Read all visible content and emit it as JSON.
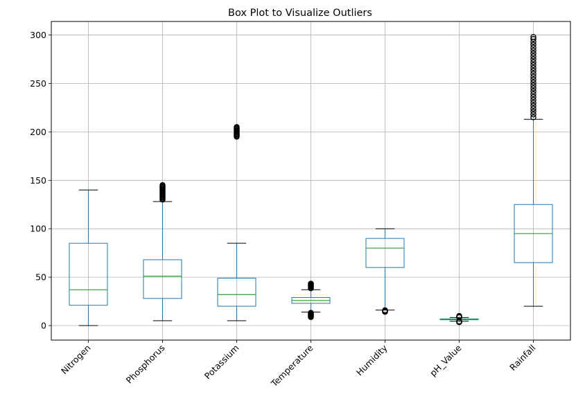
{
  "chart_data": {
    "type": "box",
    "title": "Box Plot to Visualize Outliers",
    "xlabel": "",
    "ylabel": "",
    "ylim": [
      -15,
      314
    ],
    "yticks": [
      0,
      50,
      100,
      150,
      200,
      250,
      300
    ],
    "grid": true,
    "colors": {
      "box": "#1f77b4",
      "median": "#2ca02c",
      "whisker_cap": "#000000",
      "flier": "#000000",
      "grid": "#b0b0b0"
    },
    "categories": [
      "Nitrogen",
      "Phosphorus",
      "Potassium",
      "Temperature",
      "Humidity",
      "pH_Value",
      "Rainfall"
    ],
    "boxes": [
      {
        "name": "Nitrogen",
        "whisker_low": 0,
        "q1": 21,
        "median": 37,
        "q3": 85,
        "whisker_high": 140,
        "fliers": []
      },
      {
        "name": "Phosphorus",
        "whisker_low": 5,
        "q1": 28,
        "median": 51,
        "q3": 68,
        "whisker_high": 128,
        "fliers": [
          130,
          131,
          132,
          133,
          134,
          135,
          136,
          137,
          138,
          139,
          140,
          141,
          142,
          143,
          144,
          145
        ]
      },
      {
        "name": "Potassium",
        "whisker_low": 5,
        "q1": 20,
        "median": 32,
        "q3": 49,
        "whisker_high": 85,
        "fliers": [
          195,
          196,
          197,
          198,
          199,
          200,
          201,
          202,
          203,
          204,
          205
        ]
      },
      {
        "name": "Temperature",
        "whisker_low": 14,
        "q1": 23,
        "median": 26,
        "q3": 29,
        "whisker_high": 37,
        "fliers": [
          8.8,
          9.5,
          10.2,
          11,
          11.8,
          12.5,
          13.2,
          38.5,
          39.5,
          40.3,
          41,
          41.8,
          42.5,
          43.3
        ]
      },
      {
        "name": "Humidity",
        "whisker_low": 16,
        "q1": 60,
        "median": 80,
        "q3": 90,
        "whisker_high": 100,
        "fliers": [
          14.2,
          14.8,
          15.3,
          15.8
        ]
      },
      {
        "name": "pH_Value",
        "whisker_low": 4.5,
        "q1": 5.97,
        "median": 6.43,
        "q3": 6.92,
        "whisker_high": 8.3,
        "fliers": [
          3.5,
          3.8,
          4.1,
          4.3,
          8.6,
          9,
          9.4,
          9.9
        ]
      },
      {
        "name": "Rainfall",
        "whisker_low": 20,
        "q1": 65,
        "median": 95,
        "q3": 125,
        "whisker_high": 213,
        "fliers": [
          215,
          218,
          221,
          224,
          227,
          230,
          233,
          236,
          239,
          242,
          245,
          248,
          251,
          254,
          257,
          260,
          263,
          266,
          269,
          272,
          275,
          278,
          281,
          284,
          287,
          290,
          293,
          296,
          298
        ]
      }
    ]
  }
}
